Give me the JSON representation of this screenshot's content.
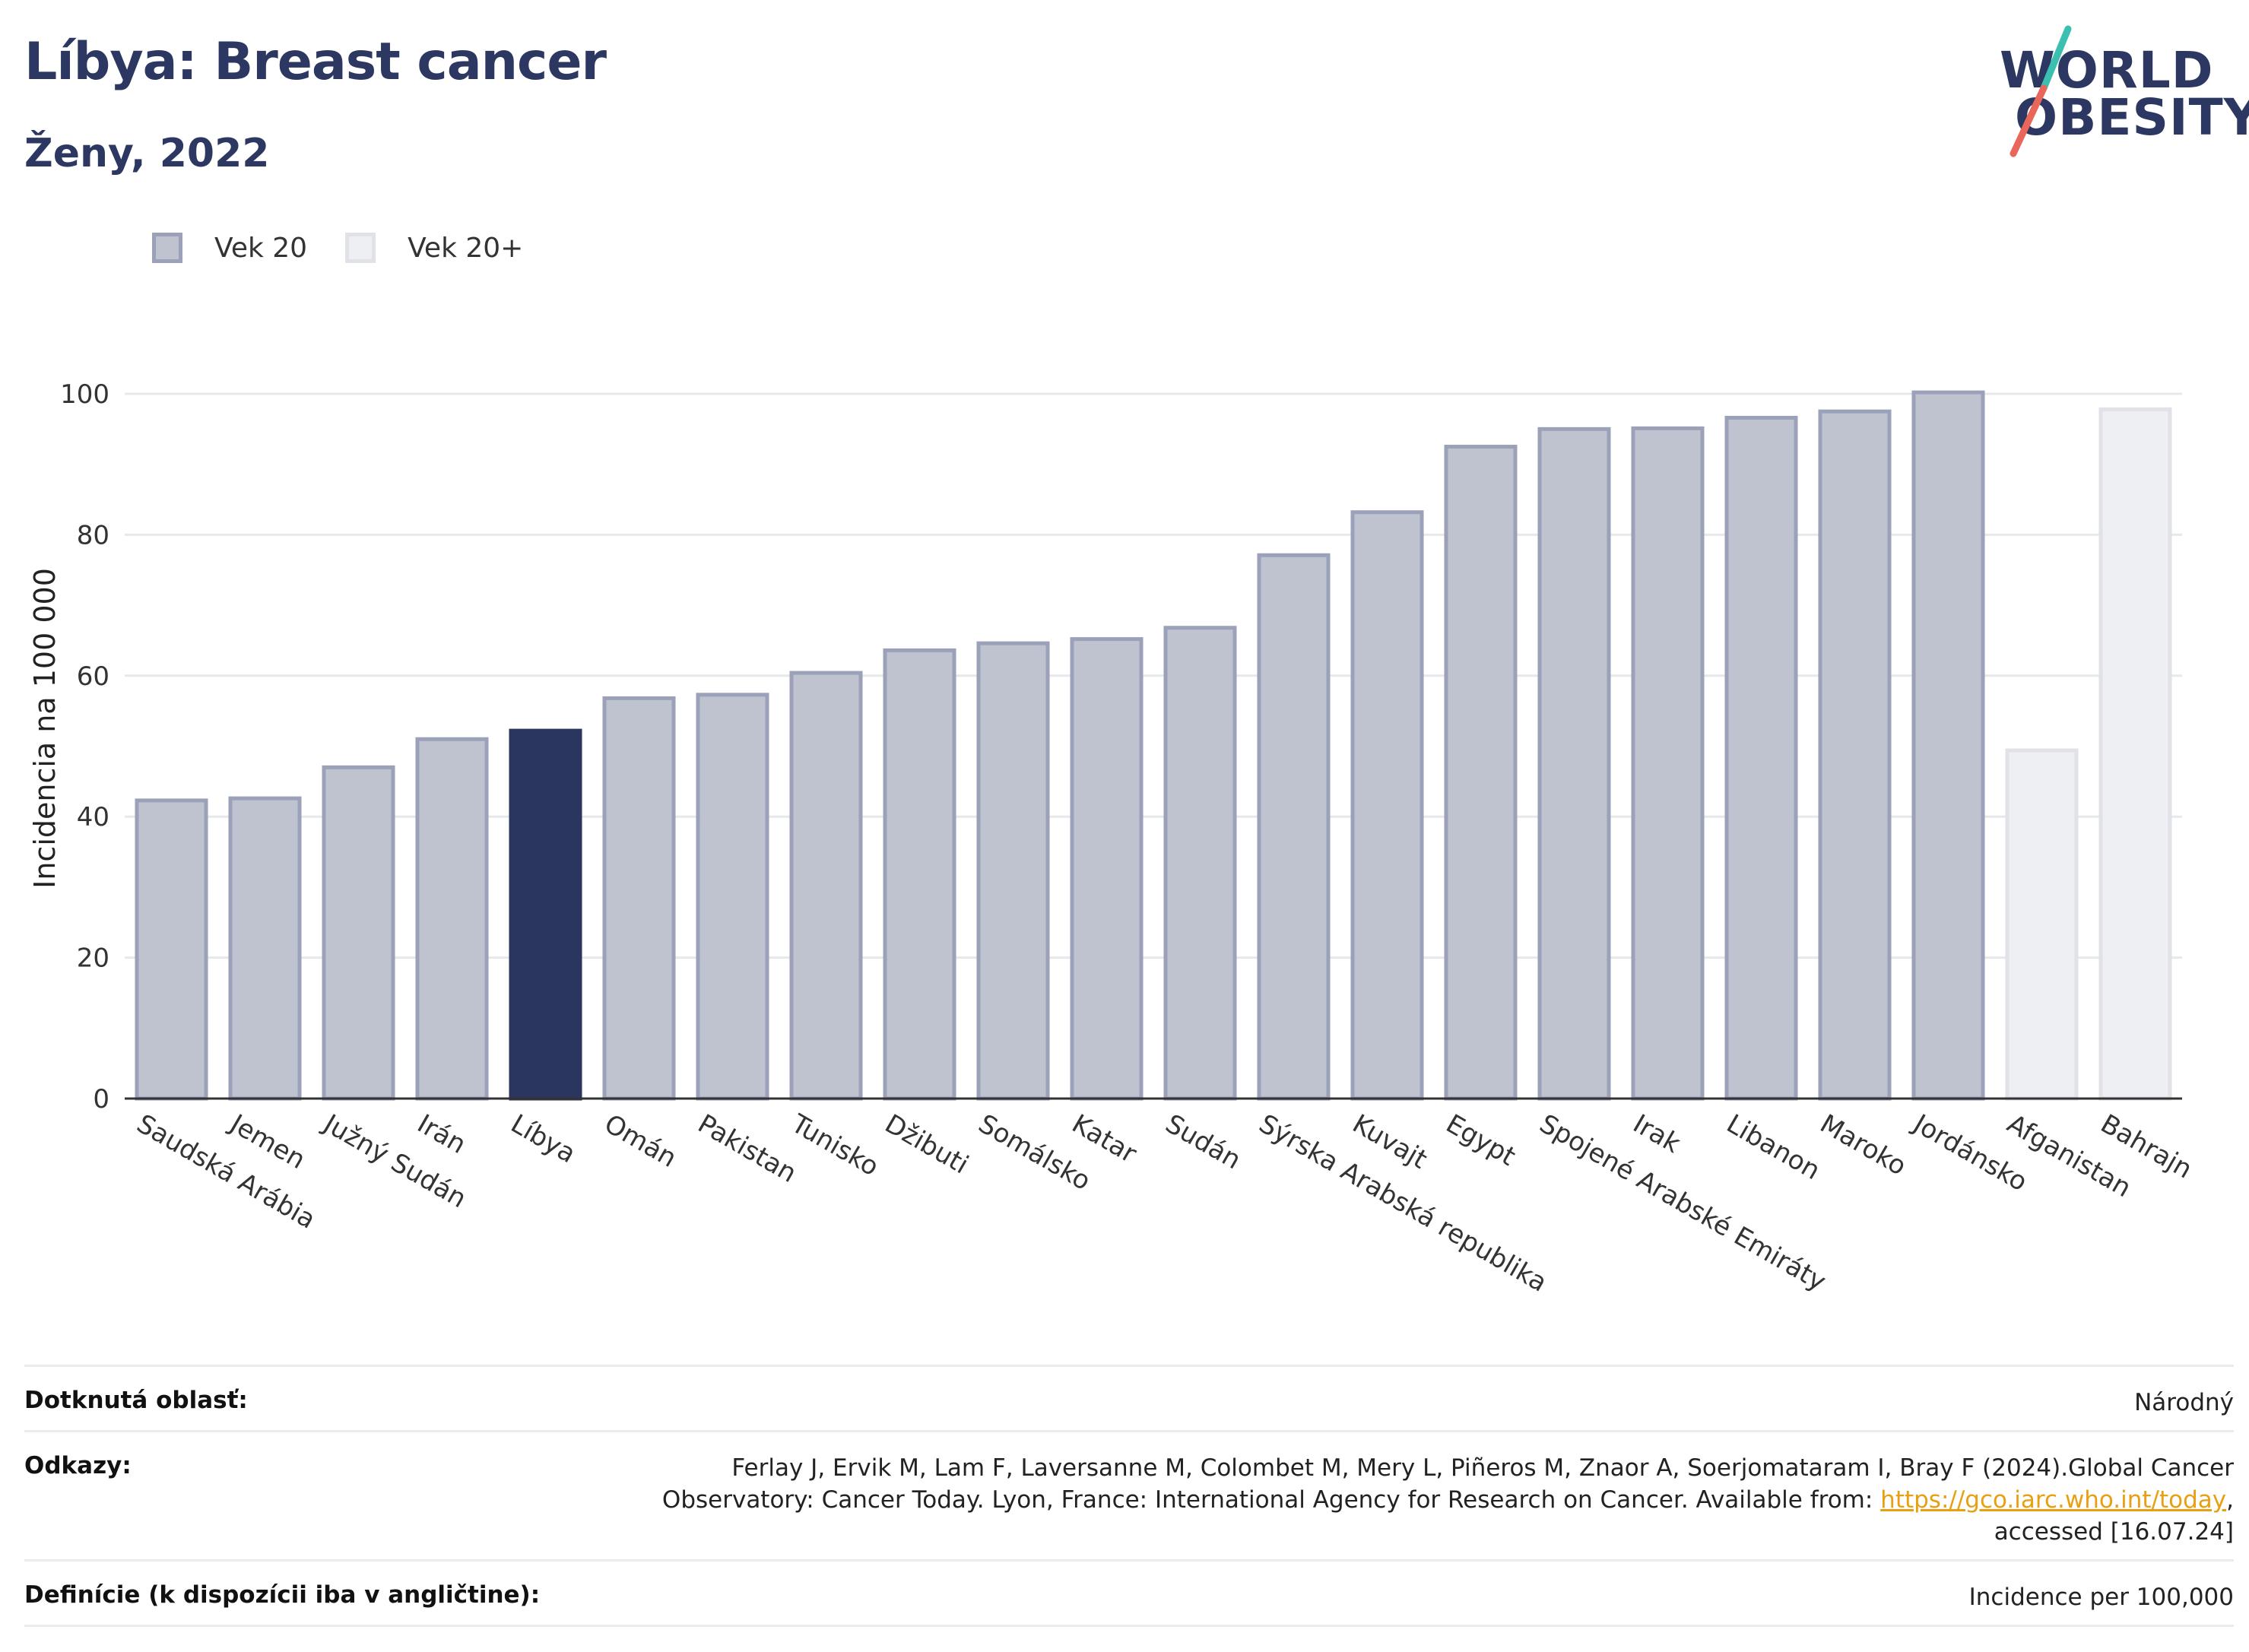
{
  "header": {
    "title": "Líbya: Breast cancer",
    "subtitle": "Ženy, 2022"
  },
  "logo": {
    "line1": "WORLD",
    "line2": "OBESITY"
  },
  "legend": {
    "items": [
      {
        "label": "Vek 20",
        "fill": "#bfc3d0",
        "stroke": "#9ba1b8"
      },
      {
        "label": "Vek 20+",
        "fill": "#eeeff3",
        "stroke": "#e0e2e8"
      }
    ]
  },
  "colors": {
    "highlight": "#2b3660",
    "bar_fill": "#bfc3d0",
    "bar_stroke": "#9ba1b8",
    "bar20p_fill": "#eeeff3",
    "bar20p_stroke": "#e0e2e8",
    "grid": "#e6e8ec"
  },
  "chart_data": {
    "type": "bar",
    "ylabel": "Incidencia na 100 000",
    "ylim": [
      0,
      100
    ],
    "yticks": [
      "0",
      "20",
      "40",
      "60",
      "80",
      "100"
    ],
    "grid": true,
    "legend_position": "top-left",
    "categories": [
      "Saudská Arábia",
      "Jemen",
      "Južný Sudán",
      "Irán",
      "Líbya",
      "Omán",
      "Pakistan",
      "Tunisko",
      "Džibuti",
      "Somálsko",
      "Katar",
      "Sudán",
      "Sýrska Arabská republika",
      "Kuvajt",
      "Egypt",
      "Spojené Arabské Emiráty",
      "Irak",
      "Libanon",
      "Maroko",
      "Jordánsko",
      "Afganistan",
      "Bahrajn"
    ],
    "values": [
      42.3,
      42.6,
      47.0,
      51.0,
      52.2,
      56.8,
      57.3,
      60.4,
      63.6,
      64.6,
      65.2,
      66.8,
      77.1,
      83.2,
      92.5,
      95.0,
      95.1,
      96.6,
      97.5,
      100.2,
      49.4,
      97.8
    ],
    "groups": [
      "Vek 20",
      "Vek 20",
      "Vek 20",
      "Vek 20",
      "Vek 20",
      "Vek 20",
      "Vek 20",
      "Vek 20",
      "Vek 20",
      "Vek 20",
      "Vek 20",
      "Vek 20",
      "Vek 20",
      "Vek 20",
      "Vek 20",
      "Vek 20",
      "Vek 20",
      "Vek 20",
      "Vek 20",
      "Vek 20",
      "Vek 20+",
      "Vek 20+"
    ],
    "highlight": "Líbya"
  },
  "footer": {
    "rows": [
      {
        "key": "Dotknutá oblasť:",
        "value": "Národný"
      },
      {
        "key": "Odkazy:",
        "line1": "Ferlay J, Ervik M, Lam F, Laversanne M, Colombet M, Mery L, Piñeros M, Znaor A, Soerjomataram I, Bray F (2024).Global Cancer",
        "line2_pre": "Observatory: Cancer Today. Lyon, France: International Agency for Research on Cancer. Available from: ",
        "link": "https://gco.iarc.who.int/today",
        "line2_post": ",",
        "line3": "accessed [16.07.24]"
      },
      {
        "key": "Definície (k dispozícii iba v angličtine):",
        "value": "Incidence per 100,000"
      }
    ]
  }
}
